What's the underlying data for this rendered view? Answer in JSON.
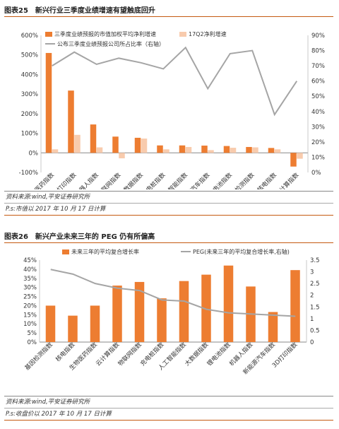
{
  "figures": [
    {
      "number": "图表25",
      "title": "新兴行业三季度业绩增速有望触底回升",
      "source": "资料来源:wind,平安证券研究所",
      "note": "P.s:市值以 2017 年 10 月 17 日计算"
    },
    {
      "number": "图表26",
      "title": "新兴产业未来三年的 PEG 仍有所偏高",
      "source": "资料来源:wind,平安证券研究所",
      "note": "P.s:收盘价以 2017 年 10 月 17 日计算"
    }
  ],
  "chart_data": [
    {
      "type": "bar",
      "categories": [
        "生物医药指数",
        "3D打印指数",
        "机器人指数",
        "物联网指数",
        "大数据指数",
        "充电桩指数",
        "人工智能指数",
        "新能源汽车指数",
        "锂电池指数",
        "基因检测指数",
        "核电指数",
        "云计算指数"
      ],
      "series": [
        {
          "name": "三季度业绩预报的市值加权平均净利增速",
          "axis": "left",
          "type": "bar",
          "color": "#ed7d31",
          "values": [
            510,
            318,
            145,
            83,
            77,
            38,
            38,
            37,
            35,
            30,
            25,
            -70
          ]
        },
        {
          "name": "17Q2净利增速",
          "axis": "left",
          "type": "bar",
          "color": "#f8cbad",
          "values": [
            18,
            92,
            28,
            -28,
            73,
            18,
            30,
            14,
            26,
            28,
            18,
            -30
          ]
        },
        {
          "name": "公布三季度业绩预报公司所占比率（右轴）",
          "axis": "right",
          "type": "line",
          "color": "#a5a5a5",
          "values": [
            70,
            79,
            71,
            75,
            72,
            68,
            82,
            55,
            78,
            80,
            38,
            60
          ]
        }
      ],
      "ylim": [
        -100,
        600
      ],
      "yticks": [
        "-100%",
        "0%",
        "100%",
        "200%",
        "300%",
        "400%",
        "500%",
        "600%"
      ],
      "y2lim": [
        0,
        90
      ],
      "y2ticks": [
        "0%",
        "10%",
        "20%",
        "30%",
        "40%",
        "50%",
        "60%",
        "70%",
        "80%",
        "90%"
      ],
      "legend": "top",
      "grid": false
    },
    {
      "type": "bar",
      "categories": [
        "基因检测指数",
        "核电指数",
        "生物医药指数",
        "云计算指数",
        "物联网指数",
        "充电桩指数",
        "人工智能指数",
        "大数据指数",
        "锂电池指数",
        "机器人指数",
        "新能源汽车指数",
        "3D打印指数"
      ],
      "series": [
        {
          "name": "未来三年的平均复合增长率",
          "axis": "left",
          "type": "bar",
          "color": "#ed7d31",
          "values": [
            20,
            14.5,
            20,
            31,
            33,
            24,
            33.5,
            37,
            42,
            30.5,
            16.5,
            39.5
          ]
        },
        {
          "name": "PEG(未来三年的平均复合增长率,右轴)",
          "axis": "right",
          "type": "line",
          "color": "#a5a5a5",
          "values": [
            3.1,
            2.9,
            2.5,
            2.3,
            2.2,
            1.8,
            1.75,
            1.4,
            1.25,
            1.2,
            1.15,
            1.1
          ]
        }
      ],
      "ylim": [
        0,
        45
      ],
      "yticks": [
        "0%",
        "5%",
        "10%",
        "15%",
        "20%",
        "25%",
        "30%",
        "35%",
        "40%",
        "45%"
      ],
      "y2lim": [
        0,
        3.5
      ],
      "y2ticks": [
        "0",
        "0.5",
        "1",
        "1.5",
        "2",
        "2.5",
        "3",
        "3.5"
      ],
      "legend": "top",
      "grid": false
    }
  ]
}
